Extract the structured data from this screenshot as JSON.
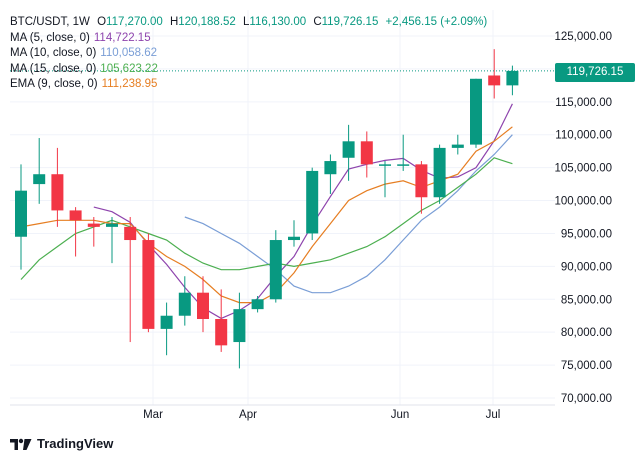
{
  "header": {
    "symbol": "BTC/USDT, 1W",
    "open_key": "O",
    "open": "117,270.00",
    "high_key": "H",
    "high": "120,188.52",
    "low_key": "L",
    "low": "116,130.00",
    "close_key": "C",
    "close": "119,726.15",
    "change": "+2,456.15 (+2.09%)"
  },
  "indicators": [
    {
      "label": "MA (5, close, 0)",
      "value": "114,722.15",
      "color": "#8e44ad"
    },
    {
      "label": "MA (10, close, 0)",
      "value": "110,058.62",
      "color": "#7a9ed6"
    },
    {
      "label": "MA (15, close, 0)",
      "value": "105,623.22",
      "color": "#4caf50"
    },
    {
      "label": "EMA (9, close, 0)",
      "value": "111,238.95",
      "color": "#e67e22"
    }
  ],
  "last_price_label": "119,726.15",
  "brand": {
    "name": "TradingView"
  },
  "colors": {
    "up": "#089981",
    "down": "#f23645",
    "grid": "#f0f3fa",
    "axis_text": "#131722"
  },
  "chart_data": {
    "type": "candlestick",
    "y_ticks": [
      "125,000.00",
      "120,000.00",
      "115,000.00",
      "110,000.00",
      "105,000.00",
      "100,000.00",
      "95,000.00",
      "90,000.00",
      "85,000.00",
      "80,000.00",
      "75,000.00",
      "70,000.00"
    ],
    "x_ticks": [
      "Mar",
      "Apr",
      "Jun",
      "Jul"
    ],
    "ylim": [
      70000,
      125000
    ],
    "candles": [
      {
        "o": 94500,
        "h": 105500,
        "l": 89500,
        "c": 101500
      },
      {
        "o": 102500,
        "h": 109500,
        "l": 99500,
        "c": 104000
      },
      {
        "o": 104000,
        "h": 108000,
        "l": 96000,
        "c": 98500
      },
      {
        "o": 98500,
        "h": 99000,
        "l": 91500,
        "c": 97000
      },
      {
        "o": 96500,
        "h": 97500,
        "l": 93000,
        "c": 96000
      },
      {
        "o": 96000,
        "h": 97500,
        "l": 90500,
        "c": 96500
      },
      {
        "o": 96000,
        "h": 97500,
        "l": 78500,
        "c": 94000
      },
      {
        "o": 94000,
        "h": 95000,
        "l": 80000,
        "c": 80500
      },
      {
        "o": 80500,
        "h": 84500,
        "l": 76500,
        "c": 82500
      },
      {
        "o": 82500,
        "h": 88500,
        "l": 81000,
        "c": 86000
      },
      {
        "o": 86000,
        "h": 88500,
        "l": 80000,
        "c": 82000
      },
      {
        "o": 82000,
        "h": 86500,
        "l": 77000,
        "c": 78000
      },
      {
        "o": 78500,
        "h": 86000,
        "l": 74500,
        "c": 83500
      },
      {
        "o": 83500,
        "h": 85500,
        "l": 83000,
        "c": 85000
      },
      {
        "o": 85000,
        "h": 95500,
        "l": 84500,
        "c": 94000
      },
      {
        "o": 94000,
        "h": 97000,
        "l": 93000,
        "c": 94500
      },
      {
        "o": 95000,
        "h": 105000,
        "l": 94000,
        "c": 104500
      },
      {
        "o": 104000,
        "h": 107000,
        "l": 101000,
        "c": 106000
      },
      {
        "o": 106500,
        "h": 111500,
        "l": 103000,
        "c": 109000
      },
      {
        "o": 109000,
        "h": 110500,
        "l": 103500,
        "c": 105500
      },
      {
        "o": 105500,
        "h": 106000,
        "l": 100500,
        "c": 105500
      },
      {
        "o": 105500,
        "h": 110000,
        "l": 104500,
        "c": 105500
      },
      {
        "o": 105500,
        "h": 106000,
        "l": 98000,
        "c": 100500
      },
      {
        "o": 100500,
        "h": 108500,
        "l": 99500,
        "c": 108000
      },
      {
        "o": 108000,
        "h": 110000,
        "l": 107000,
        "c": 108500
      },
      {
        "o": 108500,
        "h": 118500,
        "l": 108000,
        "c": 118500
      },
      {
        "o": 119000,
        "h": 123000,
        "l": 115500,
        "c": 117500
      },
      {
        "o": 117500,
        "h": 120500,
        "l": 116000,
        "c": 119700
      }
    ],
    "series": [
      {
        "name": "MA (5, close, 0)",
        "color": "#8e44ad",
        "values": [
          null,
          null,
          null,
          null,
          99000,
          98300,
          96700,
          93300,
          90300,
          86800,
          83700,
          82100,
          83300,
          85100,
          88500,
          91500,
          96300,
          100600,
          104800,
          105500,
          106100,
          106400,
          104600,
          103400,
          103600,
          105000,
          109100,
          114700
        ]
      },
      {
        "name": "MA (10, close, 0)",
        "color": "#7a9ed6",
        "values": [
          null,
          null,
          null,
          null,
          null,
          null,
          null,
          null,
          null,
          97500,
          96500,
          95000,
          93500,
          91500,
          89500,
          87000,
          86000,
          86000,
          87000,
          88500,
          91000,
          94000,
          97000,
          99000,
          101500,
          104500,
          107000,
          110000
        ]
      },
      {
        "name": "MA (15, close, 0)",
        "color": "#4caf50",
        "values": [
          88000,
          91000,
          93000,
          95000,
          96000,
          97000,
          96000,
          95000,
          94000,
          92000,
          90500,
          89500,
          89500,
          90000,
          90500,
          90000,
          90500,
          91000,
          92000,
          93000,
          94500,
          96500,
          98500,
          100000,
          102000,
          104000,
          106500,
          105600
        ]
      },
      {
        "name": "EMA (9, close, 0)",
        "color": "#e67e22",
        "values": [
          96000,
          96500,
          97000,
          97000,
          97000,
          96500,
          96500,
          93500,
          91500,
          90000,
          88000,
          85500,
          84500,
          84500,
          86000,
          89000,
          93000,
          96500,
          100000,
          101500,
          102500,
          103000,
          102000,
          103000,
          104000,
          107500,
          109000,
          111200
        ]
      }
    ]
  }
}
